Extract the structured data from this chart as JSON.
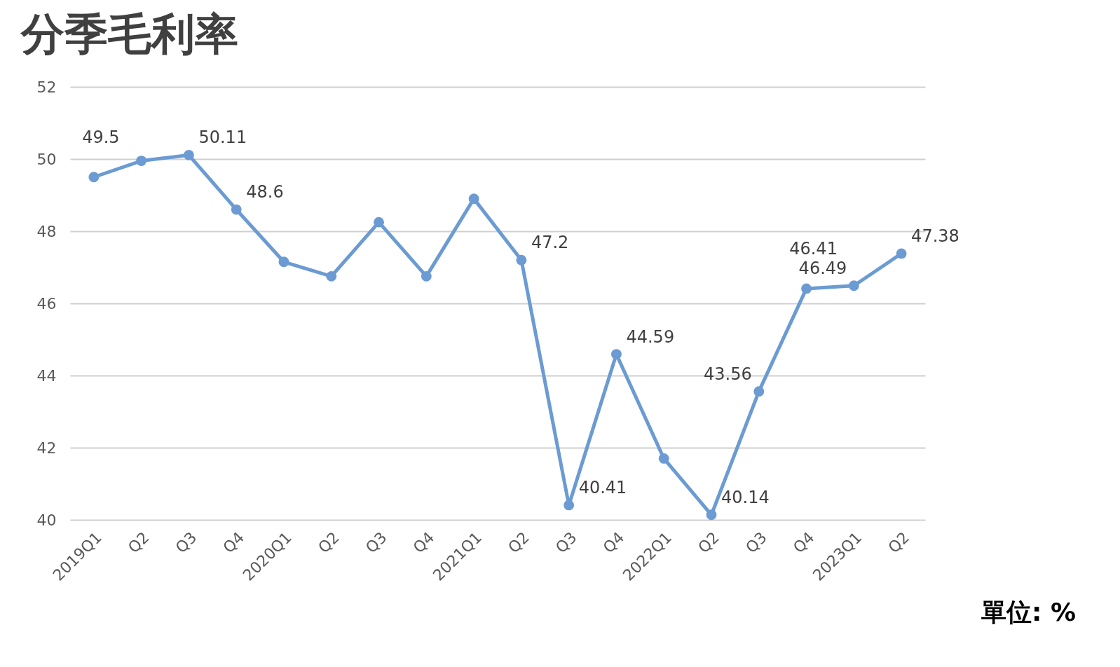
{
  "chart_data": {
    "type": "line",
    "title": "分季毛利率",
    "categories": [
      "2019Q1",
      "Q2",
      "Q3",
      "Q4",
      "2020Q1",
      "Q2",
      "Q3",
      "Q4",
      "2021Q1",
      "Q2",
      "Q3",
      "Q4",
      "2022Q1",
      "Q2",
      "Q3",
      "Q4",
      "2023Q1",
      "Q2"
    ],
    "series": [
      {
        "color": "#6b9bd2",
        "values": [
          49.5,
          49.95,
          50.11,
          48.6,
          47.15,
          46.75,
          48.25,
          46.75,
          48.9,
          47.2,
          40.41,
          44.59,
          41.7,
          40.14,
          43.56,
          46.41,
          46.49,
          47.38
        ],
        "value_labels": [
          "49.5",
          null,
          "50.11",
          "48.6",
          null,
          null,
          null,
          null,
          null,
          "47.2",
          "40.41",
          "44.59",
          null,
          "40.14",
          "43.56",
          "46.41",
          "46.49",
          "47.38"
        ]
      }
    ],
    "ylim": [
      40,
      52
    ],
    "yticks": [
      40,
      42,
      44,
      46,
      48,
      50,
      52
    ],
    "grid": "y",
    "marker": "circle",
    "line_style": "solid",
    "annotations": [
      "單位: %"
    ]
  }
}
